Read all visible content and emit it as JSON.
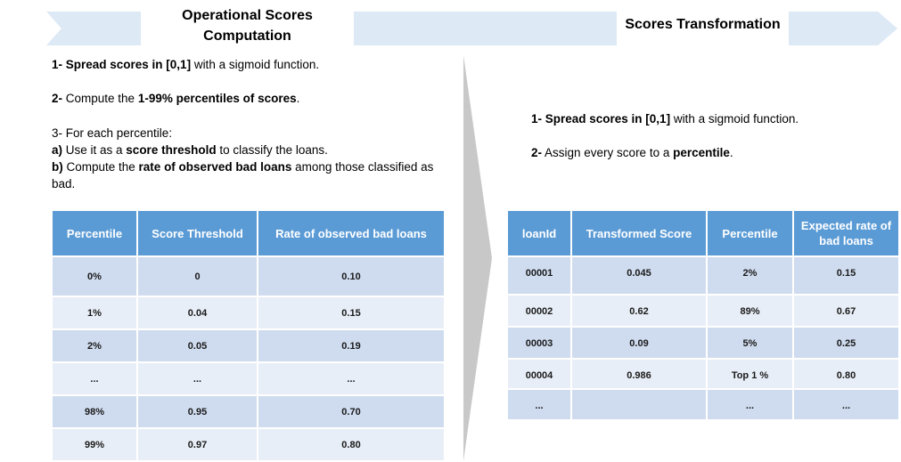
{
  "left": {
    "title_line1": "Operational Scores",
    "title_line2": "Computation",
    "step1": {
      "prefix": "1- Spread scores in [0,1]",
      "suffix": " with a sigmoid function."
    },
    "step2": {
      "num": "2-",
      "mid": " Compute the ",
      "bold": "1-99% percentiles of scores",
      "end": "."
    },
    "step3": {
      "line1": "3- For each percentile:",
      "a_label": "a)",
      "a_text1": " Use it as a ",
      "a_bold": "score threshold",
      "a_text2": " to classify the loans.",
      "b_label": "b)",
      "b_text1": " Compute  the ",
      "b_bold": "rate of observed bad loans",
      "b_text2": " among those classified as bad."
    },
    "table": {
      "headers": [
        "Percentile",
        "Score Threshold",
        "Rate of observed bad loans"
      ],
      "rows": [
        [
          "0%",
          "0",
          "0.10"
        ],
        [
          "1%",
          "0.04",
          "0.15"
        ],
        [
          "2%",
          "0.05",
          "0.19"
        ],
        [
          "...",
          "...",
          "..."
        ],
        [
          "98%",
          "0.95",
          "0.70"
        ],
        [
          "99%",
          "0.97",
          "0.80"
        ]
      ]
    }
  },
  "right": {
    "title": "Scores Transformation",
    "step1": {
      "prefix": "1- Spread scores in [0,1]",
      "suffix": " with a sigmoid function."
    },
    "step2": {
      "num": "2-",
      "mid": " Assign every score to a ",
      "bold": "percentile",
      "end": "."
    },
    "table": {
      "headers": [
        "loanId",
        "Transformed Score",
        "Percentile",
        "Expected rate of bad loans"
      ],
      "rows": [
        [
          "00001",
          "0.045",
          "2%",
          "0.15"
        ],
        [
          "00002",
          "0.62",
          "89%",
          "0.67"
        ],
        [
          "00003",
          "0.09",
          "5%",
          "0.25"
        ],
        [
          "00004",
          "0.986",
          "Top 1 %",
          "0.80"
        ],
        [
          "...",
          "",
          "...",
          "..."
        ]
      ]
    }
  },
  "colors": {
    "banner": "#dde9f5",
    "header": "#5b9bd5",
    "row_dark": "#cfdcef",
    "row_light": "#e8eef7",
    "divider": "#c8c8c8"
  }
}
